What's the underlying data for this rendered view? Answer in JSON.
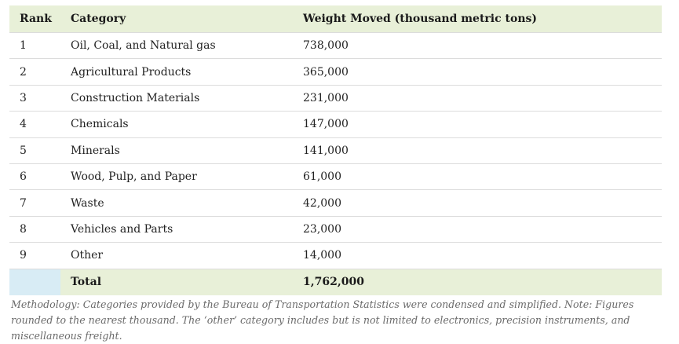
{
  "table": {
    "headers": {
      "rank": "Rank",
      "category": "Category",
      "weight": "Weight Moved (thousand metric tons)"
    },
    "rows": [
      {
        "rank": "1",
        "category": "Oil, Coal, and Natural gas",
        "weight": "738,000"
      },
      {
        "rank": "2",
        "category": "Agricultural Products",
        "weight": "365,000"
      },
      {
        "rank": "3",
        "category": "Construction Materials",
        "weight": "231,000"
      },
      {
        "rank": "4",
        "category": "Chemicals",
        "weight": "147,000"
      },
      {
        "rank": "5",
        "category": "Minerals",
        "weight": "141,000"
      },
      {
        "rank": "6",
        "category": "Wood, Pulp, and Paper",
        "weight": "61,000"
      },
      {
        "rank": "7",
        "category": "Waste",
        "weight": "42,000"
      },
      {
        "rank": "8",
        "category": "Vehicles and Parts",
        "weight": "23,000"
      },
      {
        "rank": "9",
        "category": "Other",
        "weight": "14,000"
      }
    ],
    "total": {
      "label": "Total",
      "weight": "1,762,000"
    }
  },
  "note": "Methodology: Categories provided by the Bureau of Transportation Statistics were condensed and simplified. Note: Figures rounded to the nearest thousand. The ‘other’ category includes but is not limited to electronics, precision instruments, and miscellaneous freight.",
  "colors": {
    "header_bg": "#e8f0d8",
    "total_rank_bg": "#d8ecf5",
    "row_border": "#dcdcdc",
    "note_text": "#6b6b6b"
  }
}
